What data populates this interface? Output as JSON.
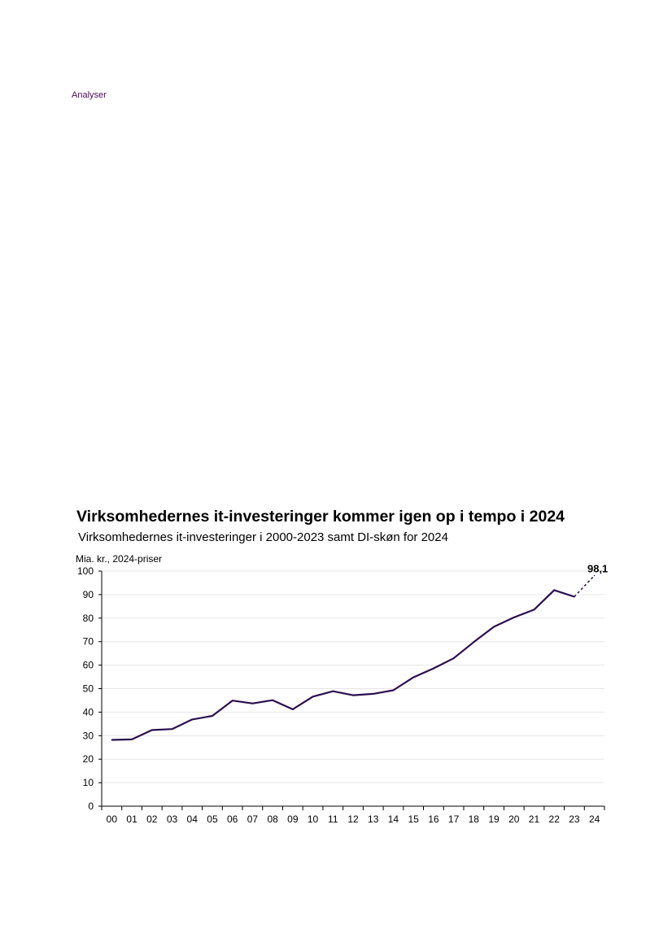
{
  "header": {
    "section_label": "Analyser"
  },
  "chart_data": {
    "type": "line",
    "title": "Virksomhedernes it-investeringer kommer igen op i tempo i 2024",
    "subtitle": "Virksomhedernes it-investeringer i 2000-2023 samt DI-skøn for 2024",
    "ylabel": "Mia. kr., 2024-priser",
    "xlabel": "",
    "categories": [
      "00",
      "01",
      "02",
      "03",
      "04",
      "05",
      "06",
      "07",
      "08",
      "09",
      "10",
      "11",
      "12",
      "13",
      "14",
      "15",
      "16",
      "17",
      "18",
      "19",
      "20",
      "21",
      "22",
      "23",
      "24"
    ],
    "y_ticks": [
      "0",
      "10",
      "20",
      "30",
      "40",
      "50",
      "60",
      "70",
      "80",
      "90",
      "100"
    ],
    "ylim": [
      0,
      100
    ],
    "grid": true,
    "series": [
      {
        "values": [
          28.2,
          28.4,
          32.4,
          32.8,
          36.9,
          38.4,
          44.9,
          43.7,
          45.1,
          41.2,
          46.6,
          48.9,
          47.2,
          47.8,
          49.3,
          54.8,
          58.6,
          62.9,
          69.8,
          76.3,
          80.3,
          83.6,
          91.9,
          89.1,
          null
        ],
        "color": "#2b0f4f",
        "style": "solid"
      },
      {
        "values": [
          null,
          null,
          null,
          null,
          null,
          null,
          null,
          null,
          null,
          null,
          null,
          null,
          null,
          null,
          null,
          null,
          null,
          null,
          null,
          null,
          null,
          null,
          null,
          89.1,
          98.1
        ],
        "color": "#2b0f4f",
        "style": "dashed"
      }
    ],
    "annotations": [
      {
        "x": "24",
        "y": 98.1,
        "text": "98,1"
      }
    ]
  }
}
